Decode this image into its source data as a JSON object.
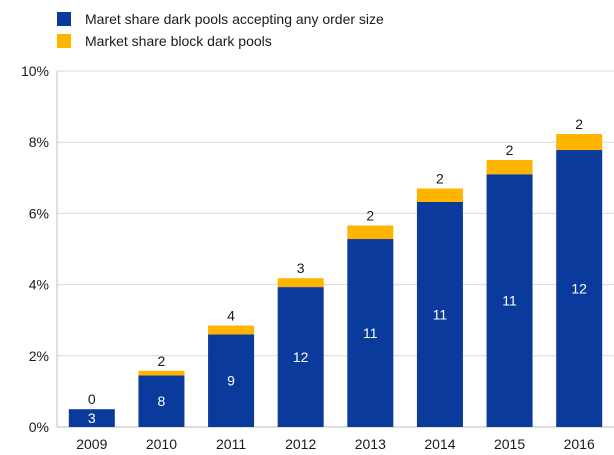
{
  "chart_data": {
    "type": "bar",
    "stacked": true,
    "categories": [
      "2009",
      "2010",
      "2011",
      "2012",
      "2013",
      "2014",
      "2015",
      "2016"
    ],
    "series": [
      {
        "name": "Maret share dark pools accepting any order size",
        "color": "#0a3a9c",
        "values": [
          0.5,
          1.45,
          2.6,
          3.93,
          5.28,
          6.32,
          7.1,
          7.78
        ],
        "labels": [
          "3",
          "8",
          "9",
          "12",
          "11",
          "11",
          "11",
          "12"
        ]
      },
      {
        "name": "Market share block dark pools",
        "color": "#ffb400",
        "values": [
          0.0,
          0.13,
          0.25,
          0.25,
          0.38,
          0.38,
          0.4,
          0.45
        ],
        "labels": [
          "0",
          "2",
          "4",
          "3",
          "2",
          "2",
          "2",
          "2"
        ]
      }
    ],
    "y_ticks": [
      "0%",
      "2%",
      "4%",
      "6%",
      "8%",
      "10%"
    ],
    "ylim": [
      0,
      10
    ],
    "y_unit": "%",
    "grid": true,
    "legend_position": "top-left"
  }
}
